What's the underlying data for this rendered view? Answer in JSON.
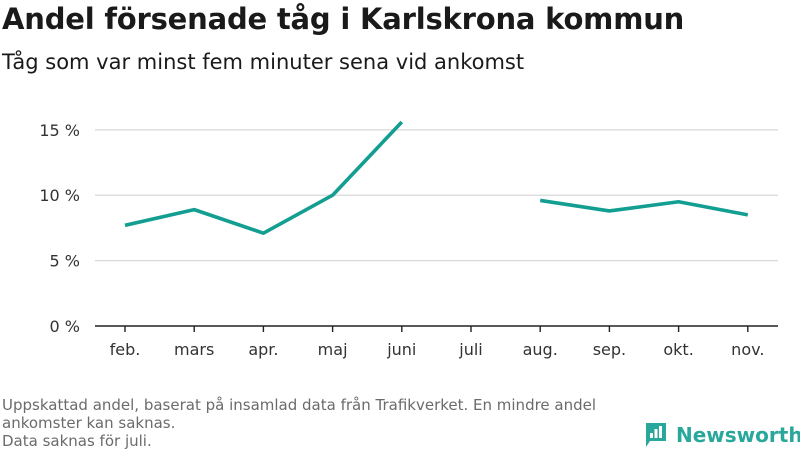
{
  "header": {
    "title": "Andel försenade tåg i Karlskrona kommun",
    "subtitle": "Tåg som var minst fem minuter sena vid ankomst"
  },
  "footnote": {
    "line1": "Uppskattad andel, baserat på insamlad data från Trafikverket. En mindre andel ankomster kan saknas.",
    "line2": "Data saknas för juli."
  },
  "brand": {
    "name": "Newsworthy",
    "icon": "newsworthy-logo-icon",
    "color": "#2aa79b"
  },
  "chart_data": {
    "type": "line",
    "categories": [
      "feb.",
      "mars",
      "apr.",
      "maj",
      "juni",
      "juli",
      "aug.",
      "sep.",
      "okt.",
      "nov."
    ],
    "series": [
      {
        "values": [
          7.7,
          8.9,
          7.1,
          10.0,
          15.6,
          null,
          9.6,
          8.8,
          9.5,
          8.5
        ],
        "color": "#139e92"
      }
    ],
    "y_ticks": [
      0,
      5,
      10,
      15
    ],
    "y_tick_labels": [
      "0 %",
      "5 %",
      "10 %",
      "15 %"
    ],
    "ylim": [
      0,
      15.6
    ],
    "grid": true
  }
}
